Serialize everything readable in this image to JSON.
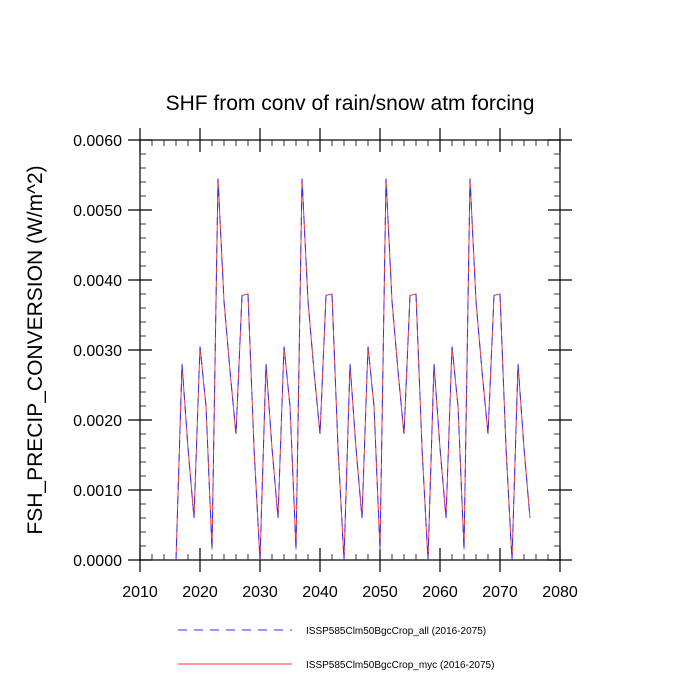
{
  "chart_data": {
    "type": "line",
    "title": "SHF from conv of rain/snow atm forcing",
    "xlabel": "",
    "ylabel": "FSH_PRECIP_CONVERSION  (W/m^2)",
    "xlim": [
      2010,
      2080
    ],
    "ylim": [
      0,
      0.006
    ],
    "x_ticks": [
      2010,
      2020,
      2030,
      2040,
      2050,
      2060,
      2070,
      2080
    ],
    "x_tick_labels": [
      "2010",
      "2020",
      "2030",
      "2040",
      "2050",
      "2060",
      "2070",
      "2080"
    ],
    "y_ticks": [
      0,
      0.001,
      0.002,
      0.003,
      0.004,
      0.005,
      0.006
    ],
    "y_tick_labels": [
      "0.0000",
      "0.0010",
      "0.0020",
      "0.0030",
      "0.0040",
      "0.0050",
      "0.0060"
    ],
    "x": [
      2016,
      2017,
      2018,
      2019,
      2020,
      2021,
      2022,
      2023,
      2024,
      2025,
      2026,
      2027,
      2028,
      2029,
      2030,
      2031,
      2032,
      2033,
      2034,
      2035,
      2036,
      2037,
      2038,
      2039,
      2040,
      2041,
      2042,
      2043,
      2044,
      2045,
      2046,
      2047,
      2048,
      2049,
      2050,
      2051,
      2052,
      2053,
      2054,
      2055,
      2056,
      2057,
      2058,
      2059,
      2060,
      2061,
      2062,
      2063,
      2064,
      2065,
      2066,
      2067,
      2068,
      2069,
      2070,
      2071,
      2072,
      2073,
      2074,
      2075
    ],
    "series": [
      {
        "name": "ISSP585Clm50BgcCrop_all (2016-2075)",
        "color": "#3333ff",
        "dash": "dashed",
        "values": [
          0.0,
          0.0028,
          0.0016,
          0.0006,
          0.00305,
          0.0022,
          0.00015,
          0.00545,
          0.0037,
          0.0027,
          0.0018,
          0.00378,
          0.0038,
          0.0016,
          0.0,
          0.0028,
          0.0016,
          0.0006,
          0.00305,
          0.0022,
          0.00015,
          0.00545,
          0.0037,
          0.0027,
          0.0018,
          0.00378,
          0.0038,
          0.0016,
          0.0,
          0.0028,
          0.0016,
          0.0006,
          0.00305,
          0.0022,
          0.00015,
          0.00545,
          0.0037,
          0.0027,
          0.0018,
          0.00378,
          0.0038,
          0.0016,
          0.0,
          0.0028,
          0.0016,
          0.0006,
          0.00305,
          0.0022,
          0.00015,
          0.00545,
          0.0037,
          0.0027,
          0.0018,
          0.00378,
          0.0038,
          0.0016,
          0.0,
          0.0028,
          0.0016,
          0.0006
        ]
      },
      {
        "name": "ISSP585Clm50BgcCrop_myc (2016-2075)",
        "color": "#ff3333",
        "dash": "solid",
        "values": [
          0.0,
          0.0028,
          0.0016,
          0.0006,
          0.00305,
          0.0022,
          0.00015,
          0.00545,
          0.0037,
          0.0027,
          0.0018,
          0.00378,
          0.0038,
          0.0016,
          0.0,
          0.0028,
          0.0016,
          0.0006,
          0.00305,
          0.0022,
          0.00015,
          0.00545,
          0.0037,
          0.0027,
          0.0018,
          0.00378,
          0.0038,
          0.0016,
          0.0,
          0.0028,
          0.0016,
          0.0006,
          0.00305,
          0.0022,
          0.00015,
          0.00545,
          0.0037,
          0.0027,
          0.0018,
          0.00378,
          0.0038,
          0.0016,
          0.0,
          0.0028,
          0.0016,
          0.0006,
          0.00305,
          0.0022,
          0.00015,
          0.00545,
          0.0037,
          0.0027,
          0.0018,
          0.00378,
          0.0038,
          0.0016,
          0.0,
          0.0028,
          0.0016,
          0.0006
        ]
      }
    ],
    "legend_position": "bottom",
    "grid": false
  }
}
